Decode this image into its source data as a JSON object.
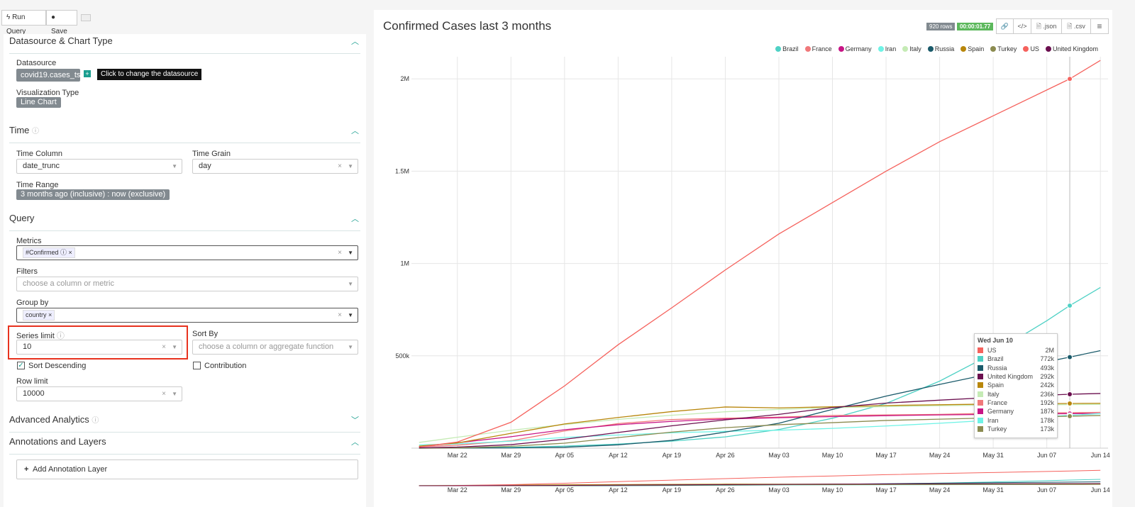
{
  "toolbar": {
    "run_query": "Run Query",
    "save": "Save",
    "keyboard_icon": "keyboard-icon"
  },
  "left": {
    "datasource_section": "Datasource & Chart Type",
    "datasource_label": "Datasource",
    "datasource_value": "covid19.cases_ts",
    "tooltip": "Click to change the datasource",
    "viz_label": "Visualization Type",
    "viz_value": "Line Chart",
    "time_section": "Time",
    "time_column_label": "Time Column",
    "time_column_value": "date_trunc",
    "time_grain_label": "Time Grain",
    "time_grain_value": "day",
    "time_range_label": "Time Range",
    "time_range_value": "3 months ago (inclusive) : now (exclusive)",
    "query_section": "Query",
    "metrics_label": "Metrics",
    "metrics_tag": "#Confirmed",
    "filters_label": "Filters",
    "filters_placeholder": "choose a column or metric",
    "groupby_label": "Group by",
    "groupby_tag": "country",
    "series_limit_label": "Series limit",
    "series_limit_value": "10",
    "sort_by_label": "Sort By",
    "sort_by_placeholder": "choose a column or aggregate function",
    "sort_desc_label": "Sort Descending",
    "sort_desc_checked": true,
    "contribution_label": "Contribution",
    "contribution_checked": false,
    "row_limit_label": "Row limit",
    "row_limit_value": "10000",
    "advanced_section": "Advanced Analytics",
    "annotations_section": "Annotations and Layers",
    "add_annotation": "Add Annotation Layer",
    "highlight_color": "#e8321e"
  },
  "header": {
    "title": "Confirmed Cases last 3 months",
    "rows_badge": "920 rows",
    "timer_badge": "00:00:01.77",
    "json": ".json",
    "csv": ".csv"
  },
  "chart_data": {
    "type": "line",
    "title": "",
    "x_domain": [
      "2020-03-16",
      "2020-06-15"
    ],
    "x_ticks": [
      "Mar 22",
      "Mar 29",
      "Apr 05",
      "Apr 12",
      "Apr 19",
      "Apr 26",
      "May 03",
      "May 10",
      "May 17",
      "May 24",
      "May 31",
      "Jun 07",
      "Jun 14"
    ],
    "y_ticks": [
      {
        "v": 500000,
        "label": "500k"
      },
      {
        "v": 1000000,
        "label": "1M"
      },
      {
        "v": 1500000,
        "label": "1.5M"
      },
      {
        "v": 2000000,
        "label": "2M"
      }
    ],
    "ylim": [
      0,
      2120000
    ],
    "grid": true,
    "legend": "top-right",
    "x": [
      "2020-03-17",
      "2020-03-22",
      "2020-03-29",
      "2020-04-05",
      "2020-04-12",
      "2020-04-19",
      "2020-04-26",
      "2020-05-03",
      "2020-05-10",
      "2020-05-17",
      "2020-05-24",
      "2020-05-31",
      "2020-06-07",
      "2020-06-10",
      "2020-06-14"
    ],
    "series": [
      {
        "name": "Brazil",
        "color": "#4fd1c5",
        "values": [
          300,
          1500,
          4300,
          11000,
          22000,
          38000,
          61000,
          101000,
          162000,
          242000,
          363000,
          514000,
          690000,
          772000,
          870000
        ]
      },
      {
        "name": "France",
        "color": "#f0787a",
        "values": [
          7700,
          16000,
          40000,
          93000,
          133000,
          155000,
          162000,
          168000,
          177000,
          180000,
          183000,
          189000,
          191000,
          192000,
          194000
        ]
      },
      {
        "name": "Germany",
        "color": "#c71585",
        "values": [
          9000,
          29000,
          62000,
          100000,
          127000,
          145000,
          158000,
          165000,
          171000,
          176000,
          180000,
          183000,
          186000,
          187000,
          187000
        ]
      },
      {
        "name": "Iran",
        "color": "#6ff3e6",
        "values": [
          17000,
          23000,
          38000,
          58000,
          71000,
          83000,
          91000,
          97000,
          107000,
          120000,
          135000,
          152000,
          171000,
          178000,
          187000
        ]
      },
      {
        "name": "Italy",
        "color": "#c5ebb5",
        "values": [
          31000,
          59000,
          97000,
          128000,
          156000,
          178000,
          197000,
          210000,
          219000,
          225000,
          230000,
          233000,
          235000,
          236000,
          237000
        ]
      },
      {
        "name": "Russia",
        "color": "#1a5a6a",
        "values": [
          100,
          400,
          1500,
          5000,
          18000,
          42000,
          87000,
          135000,
          210000,
          282000,
          345000,
          406000,
          468000,
          493000,
          528000
        ]
      },
      {
        "name": "Spain",
        "color": "#b8860b",
        "values": [
          11000,
          28000,
          80000,
          131000,
          166000,
          198000,
          223000,
          218000,
          224000,
          231000,
          235000,
          239000,
          241000,
          242000,
          243000
        ]
      },
      {
        "name": "Turkey",
        "color": "#8b8b50",
        "values": [
          100,
          1200,
          10000,
          27000,
          57000,
          87000,
          111000,
          127000,
          138000,
          150000,
          157000,
          164000,
          171000,
          173000,
          177000
        ]
      },
      {
        "name": "US",
        "color": "#f5625d",
        "values": [
          6000,
          33000,
          140000,
          337000,
          560000,
          760000,
          965000,
          1160000,
          1330000,
          1500000,
          1660000,
          1800000,
          1940000,
          2000000,
          2100000
        ]
      },
      {
        "name": "United Kingdom",
        "color": "#6b0f4f",
        "values": [
          2000,
          5700,
          19000,
          48000,
          85000,
          121000,
          153000,
          183000,
          220000,
          244000,
          260000,
          275000,
          287000,
          292000,
          296000
        ]
      }
    ],
    "tooltip": {
      "date": "Wed Jun 10",
      "hover_x": "2020-06-10",
      "rows": [
        {
          "name": "US",
          "value": "2M",
          "color": "#f5625d"
        },
        {
          "name": "Brazil",
          "value": "772k",
          "color": "#4fd1c5"
        },
        {
          "name": "Russia",
          "value": "493k",
          "color": "#1a5a6a"
        },
        {
          "name": "United Kingdom",
          "value": "292k",
          "color": "#6b0f4f"
        },
        {
          "name": "Spain",
          "value": "242k",
          "color": "#b8860b"
        },
        {
          "name": "Italy",
          "value": "236k",
          "color": "#c5ebb5"
        },
        {
          "name": "France",
          "value": "192k",
          "color": "#f0787a"
        },
        {
          "name": "Germany",
          "value": "187k",
          "color": "#c71585"
        },
        {
          "name": "Iran",
          "value": "178k",
          "color": "#6ff3e6"
        },
        {
          "name": "Turkey",
          "value": "173k",
          "color": "#8b8b50"
        }
      ]
    }
  }
}
